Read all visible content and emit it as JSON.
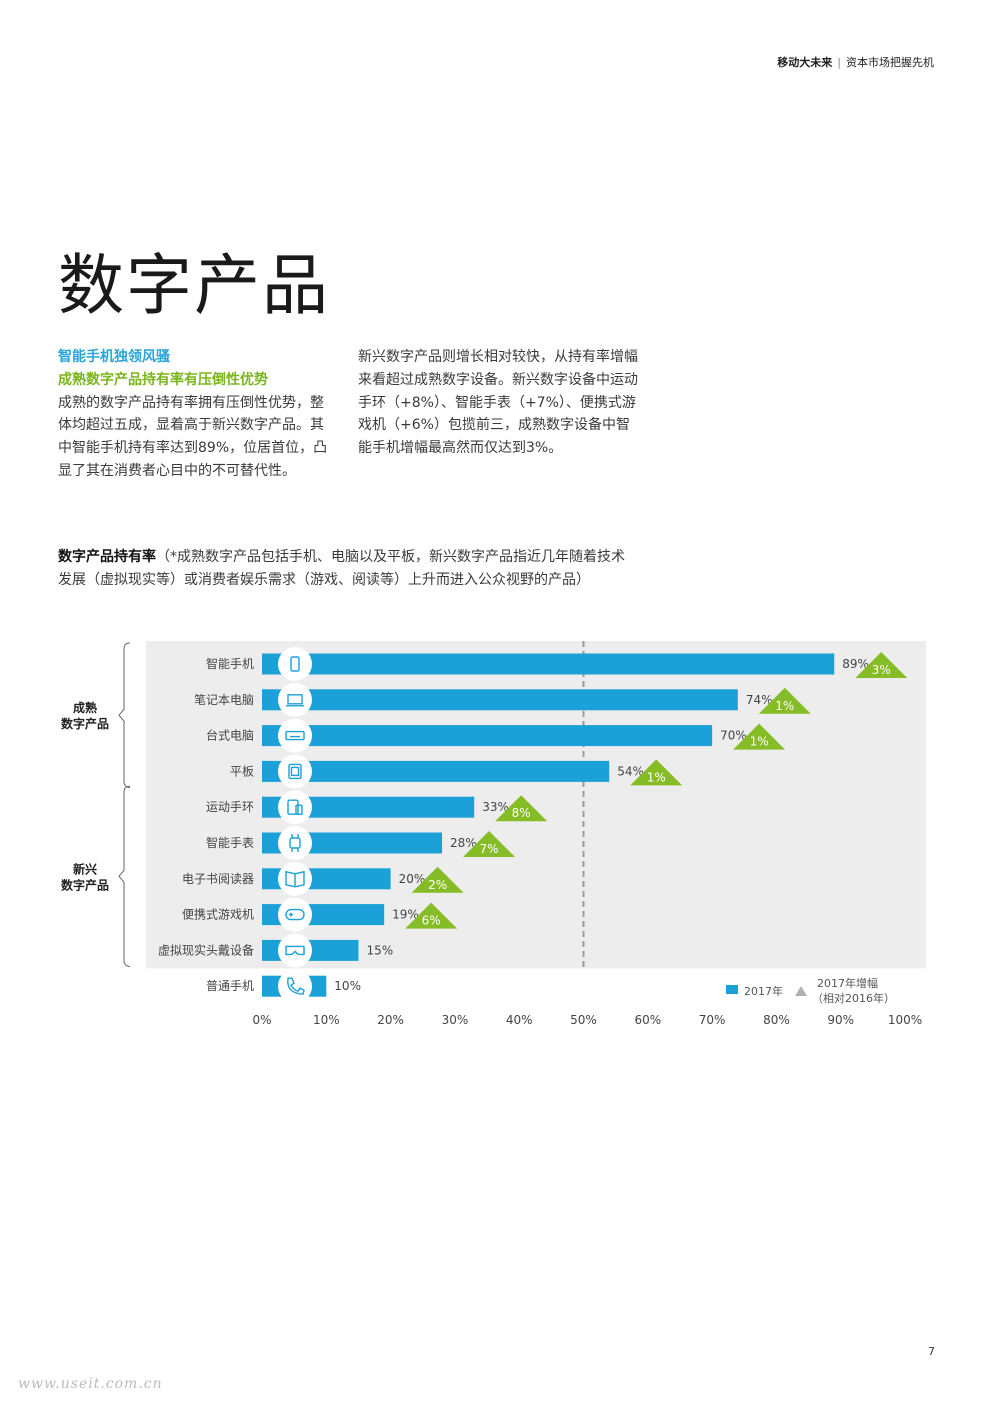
{
  "header": {
    "left": "移动大未来",
    "separator": "|",
    "right": "资本市场把握先机"
  },
  "title": "数字产品",
  "col1": {
    "heading1": "智能手机独领风骚",
    "heading2": "成熟数字产品持有率有压倒性优势",
    "body": "成熟的数字产品持有率拥有压倒性优势，整体均超过五成，显着高于新兴数字产品。其中智能手机持有率达到89%，位居首位，凸显了其在消费者心目中的不可替代性。"
  },
  "col2": {
    "body": "新兴数字产品则增长相对较快，从持有率增幅来看超过成熟数字设备。新兴数字设备中运动手环（+8%）、智能手表（+7%）、便携式游戏机（+6%）包揽前三，成熟数字设备中智能手机增幅最高然而仅达到3%。"
  },
  "chart_title": {
    "bold": "数字产品持有率",
    "rest": "（*成熟数字产品包括手机、电脑以及平板，新兴数字产品指近几年随着技术发展（虚拟现实等）或消费者娱乐需求（游戏、阅读等）上升而进入公众视野的产品）"
  },
  "chart_data": {
    "type": "bar",
    "orientation": "horizontal",
    "categories": [
      "智能手机",
      "笔记本电脑",
      "台式电脑",
      "平板",
      "运动手环",
      "智能手表",
      "电子书阅读器",
      "便携式游戏机",
      "虚拟现实头戴设备",
      "普通手机"
    ],
    "icons": [
      "smartphone-icon",
      "laptop-icon",
      "keyboard-icon",
      "tablet-icon",
      "fitness-band-icon",
      "smartwatch-icon",
      "ebook-icon",
      "gamepad-icon",
      "vr-headset-icon",
      "phone-icon"
    ],
    "series": [
      {
        "name": "2017年",
        "values": [
          89,
          74,
          70,
          54,
          33,
          28,
          20,
          19,
          15,
          10
        ],
        "value_labels": [
          "89%",
          "74%",
          "70%",
          "54%",
          "33%",
          "28%",
          "20%",
          "19%",
          "15%",
          "10%"
        ]
      },
      {
        "name": "2017年增幅（相对2016年）",
        "values": [
          3,
          1,
          1,
          1,
          8,
          7,
          2,
          6,
          null,
          null
        ],
        "value_labels": [
          "3%",
          "1%",
          "1%",
          "1%",
          "8%",
          "7%",
          "2%",
          "6%",
          "",
          ""
        ]
      }
    ],
    "groups": [
      {
        "label_line1": "成熟",
        "label_line2": "数字产品",
        "categories": [
          "智能手机",
          "笔记本电脑",
          "台式电脑",
          "平板"
        ]
      },
      {
        "label_line1": "新兴",
        "label_line2": "数字产品",
        "categories": [
          "运动手环",
          "智能手表",
          "电子书阅读器",
          "便携式游戏机",
          "虚拟现实头戴设备"
        ]
      }
    ],
    "xlim": [
      0,
      100
    ],
    "xticks": [
      "0%",
      "10%",
      "20%",
      "30%",
      "40%",
      "50%",
      "60%",
      "70%",
      "80%",
      "90%",
      "100%"
    ],
    "reference_line": 50,
    "legend": {
      "position": "bottom-right",
      "bar_label": "2017年",
      "tri_label_line1": "2017年增幅",
      "tri_label_line2": "（相对2016年）"
    },
    "colors": {
      "bar": "#1ba0d7",
      "triangle": "#86bc25",
      "group_bg": "#ededed",
      "legend_triangle": "#b0b0b0"
    }
  },
  "page_number": "7",
  "watermark": "www.useit.com.cn"
}
